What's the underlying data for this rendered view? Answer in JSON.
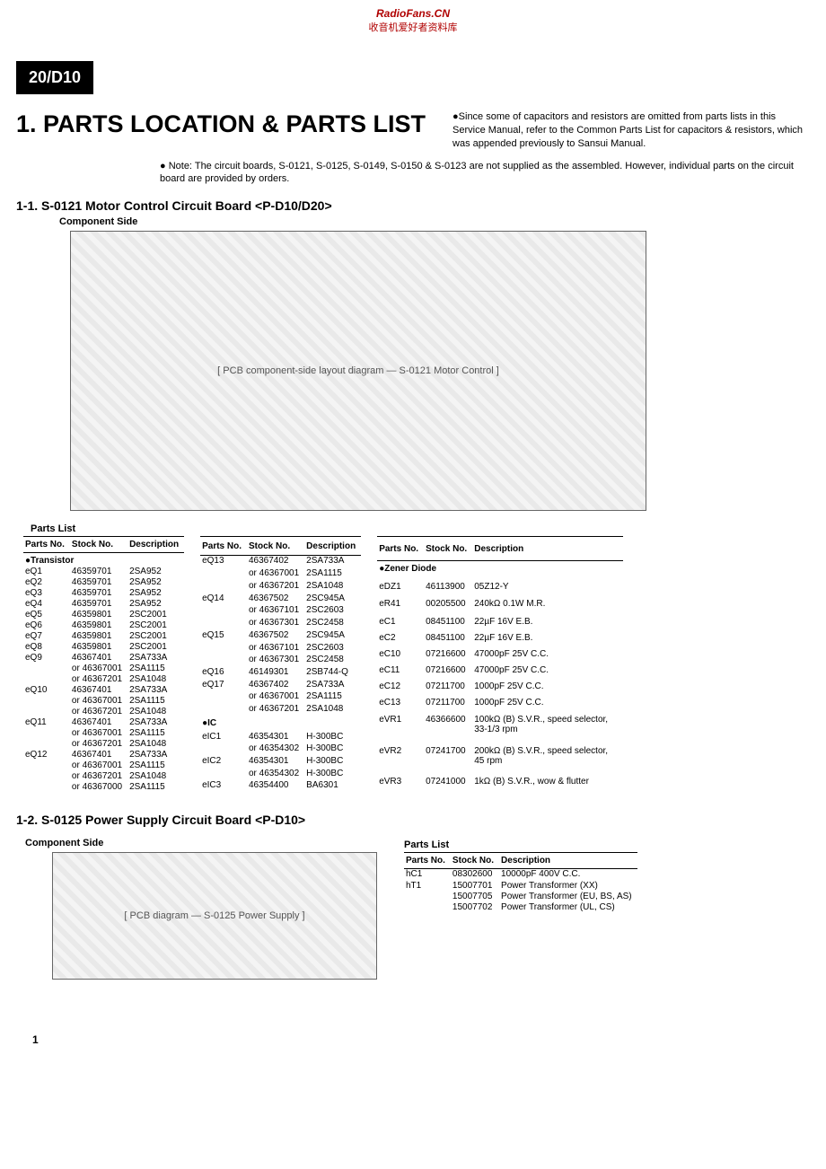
{
  "watermark": {
    "line1": "RadioFans.CN",
    "line2": "收音机爱好者资料库"
  },
  "modelBadge": "20/D10",
  "mainTitle": "1. PARTS LOCATION & PARTS LIST",
  "titleSide": "●Since some of capacitors and resistors are omitted from parts lists in this Service Manual, refer to the Common Parts List for capacitors & resistors, which was appended previously to Sansui Manual.",
  "note": "● Note: The circuit boards, S-0121, S-0125, S-0149, S-0150 & S-0123 are not supplied as the assembled. However, individual parts on the circuit board are provided by orders.",
  "section1": {
    "heading": "1-1. S-0121 Motor Control Circuit Board  <P-D10/D20>",
    "componentLabel": "Component Side",
    "pcbPlaceholder": "[ PCB component-side layout diagram — S-0121 Motor Control ]",
    "partsListLabel": "Parts List",
    "columns": [
      "Parts No.",
      "Stock No.",
      "Description"
    ],
    "table1": {
      "sectionHead": "●Transistor",
      "rows": [
        [
          "eQ1",
          "46359701",
          "2SA952"
        ],
        [
          "eQ2",
          "46359701",
          "2SA952"
        ],
        [
          "eQ3",
          "46359701",
          "2SA952"
        ],
        [
          "eQ4",
          "46359701",
          "2SA952"
        ],
        [
          "eQ5",
          "46359801",
          "2SC2001"
        ],
        [
          "eQ6",
          "46359801",
          "2SC2001"
        ],
        [
          "eQ7",
          "46359801",
          "2SC2001"
        ],
        [
          "eQ8",
          "46359801",
          "2SC2001"
        ],
        [
          "eQ9",
          "46367401",
          "2SA733A"
        ],
        [
          "",
          "or 46367001",
          "2SA1115"
        ],
        [
          "",
          "or 46367201",
          "2SA1048"
        ],
        [
          "eQ10",
          "46367401",
          "2SA733A"
        ],
        [
          "",
          "or 46367001",
          "2SA1115"
        ],
        [
          "",
          "or 46367201",
          "2SA1048"
        ],
        [
          "eQ11",
          "46367401",
          "2SA733A"
        ],
        [
          "",
          "or 46367001",
          "2SA1115"
        ],
        [
          "",
          "or 46367201",
          "2SA1048"
        ],
        [
          "eQ12",
          "46367401",
          "2SA733A"
        ],
        [
          "",
          "or 46367001",
          "2SA1115"
        ],
        [
          "",
          "or 46367201",
          "2SA1048"
        ],
        [
          "",
          "or 46367000",
          "2SA1115"
        ]
      ]
    },
    "table2": {
      "rows": [
        [
          "eQ13",
          "46367402",
          "2SA733A"
        ],
        [
          "",
          "or 46367001",
          "2SA1115"
        ],
        [
          "",
          "or 46367201",
          "2SA1048"
        ],
        [
          "eQ14",
          "46367502",
          "2SC945A"
        ],
        [
          "",
          "or 46367101",
          "2SC2603"
        ],
        [
          "",
          "or 46367301",
          "2SC2458"
        ],
        [
          "eQ15",
          "46367502",
          "2SC945A"
        ],
        [
          "",
          "or 46367101",
          "2SC2603"
        ],
        [
          "",
          "or 46367301",
          "2SC2458"
        ],
        [
          "eQ16",
          "46149301",
          "2SB744-Q"
        ],
        [
          "eQ17",
          "46367402",
          "2SA733A"
        ],
        [
          "",
          "or 46367001",
          "2SA1115"
        ],
        [
          "",
          "or 46367201",
          "2SA1048"
        ]
      ],
      "sectionHead": "●IC",
      "rows2": [
        [
          "eIC1",
          "46354301",
          "H-300BC"
        ],
        [
          "",
          "or 46354302",
          "H-300BC"
        ],
        [
          "eIC2",
          "46354301",
          "H-300BC"
        ],
        [
          "",
          "or 46354302",
          "H-300BC"
        ],
        [
          "eIC3",
          "46354400",
          "BA6301"
        ]
      ]
    },
    "table3": {
      "sectionHead": "●Zener Diode",
      "rows": [
        [
          "eDZ1",
          "46113900",
          "05Z12-Y"
        ],
        [
          "",
          "",
          ""
        ],
        [
          "eR41",
          "00205500",
          "240kΩ 0.1W M.R."
        ],
        [
          "",
          "",
          ""
        ],
        [
          "eC1",
          "08451100",
          "22µF 16V E.B."
        ],
        [
          "eC2",
          "08451100",
          "22µF 16V E.B."
        ],
        [
          "eC10",
          "07216600",
          "47000pF 25V C.C."
        ],
        [
          "eC11",
          "07216600",
          "47000pF 25V C.C."
        ],
        [
          "eC12",
          "07211700",
          "1000pF 25V C.C."
        ],
        [
          "eC13",
          "07211700",
          "1000pF 25V C.C."
        ],
        [
          "",
          "",
          ""
        ],
        [
          "eVR1",
          "46366600",
          "100kΩ (B) S.V.R., speed selector, 33-1/3 rpm"
        ],
        [
          "eVR2",
          "07241700",
          "200kΩ (B) S.V.R., speed selector, 45 rpm"
        ],
        [
          "eVR3",
          "07241000",
          "1kΩ (B) S.V.R., wow & flutter"
        ]
      ]
    }
  },
  "section2": {
    "heading": "1-2. S-0125 Power Supply Circuit Board  <P-D10>",
    "componentLabel": "Component Side",
    "pcbPlaceholder": "[ PCB diagram — S-0125 Power Supply ]",
    "partsListLabel": "Parts List",
    "columns": [
      "Parts No.",
      "Stock No.",
      "Description"
    ],
    "rows": [
      [
        "hC1",
        "08302600",
        "10000pF 400V C.C."
      ],
      [
        "",
        "",
        ""
      ],
      [
        "hT1",
        "15007701",
        "Power Transformer (XX)"
      ],
      [
        "",
        "15007705",
        "Power Transformer (EU, BS, AS)"
      ],
      [
        "",
        "15007702",
        "Power Transformer (UL, CS)"
      ]
    ]
  },
  "pageNumber": "1"
}
